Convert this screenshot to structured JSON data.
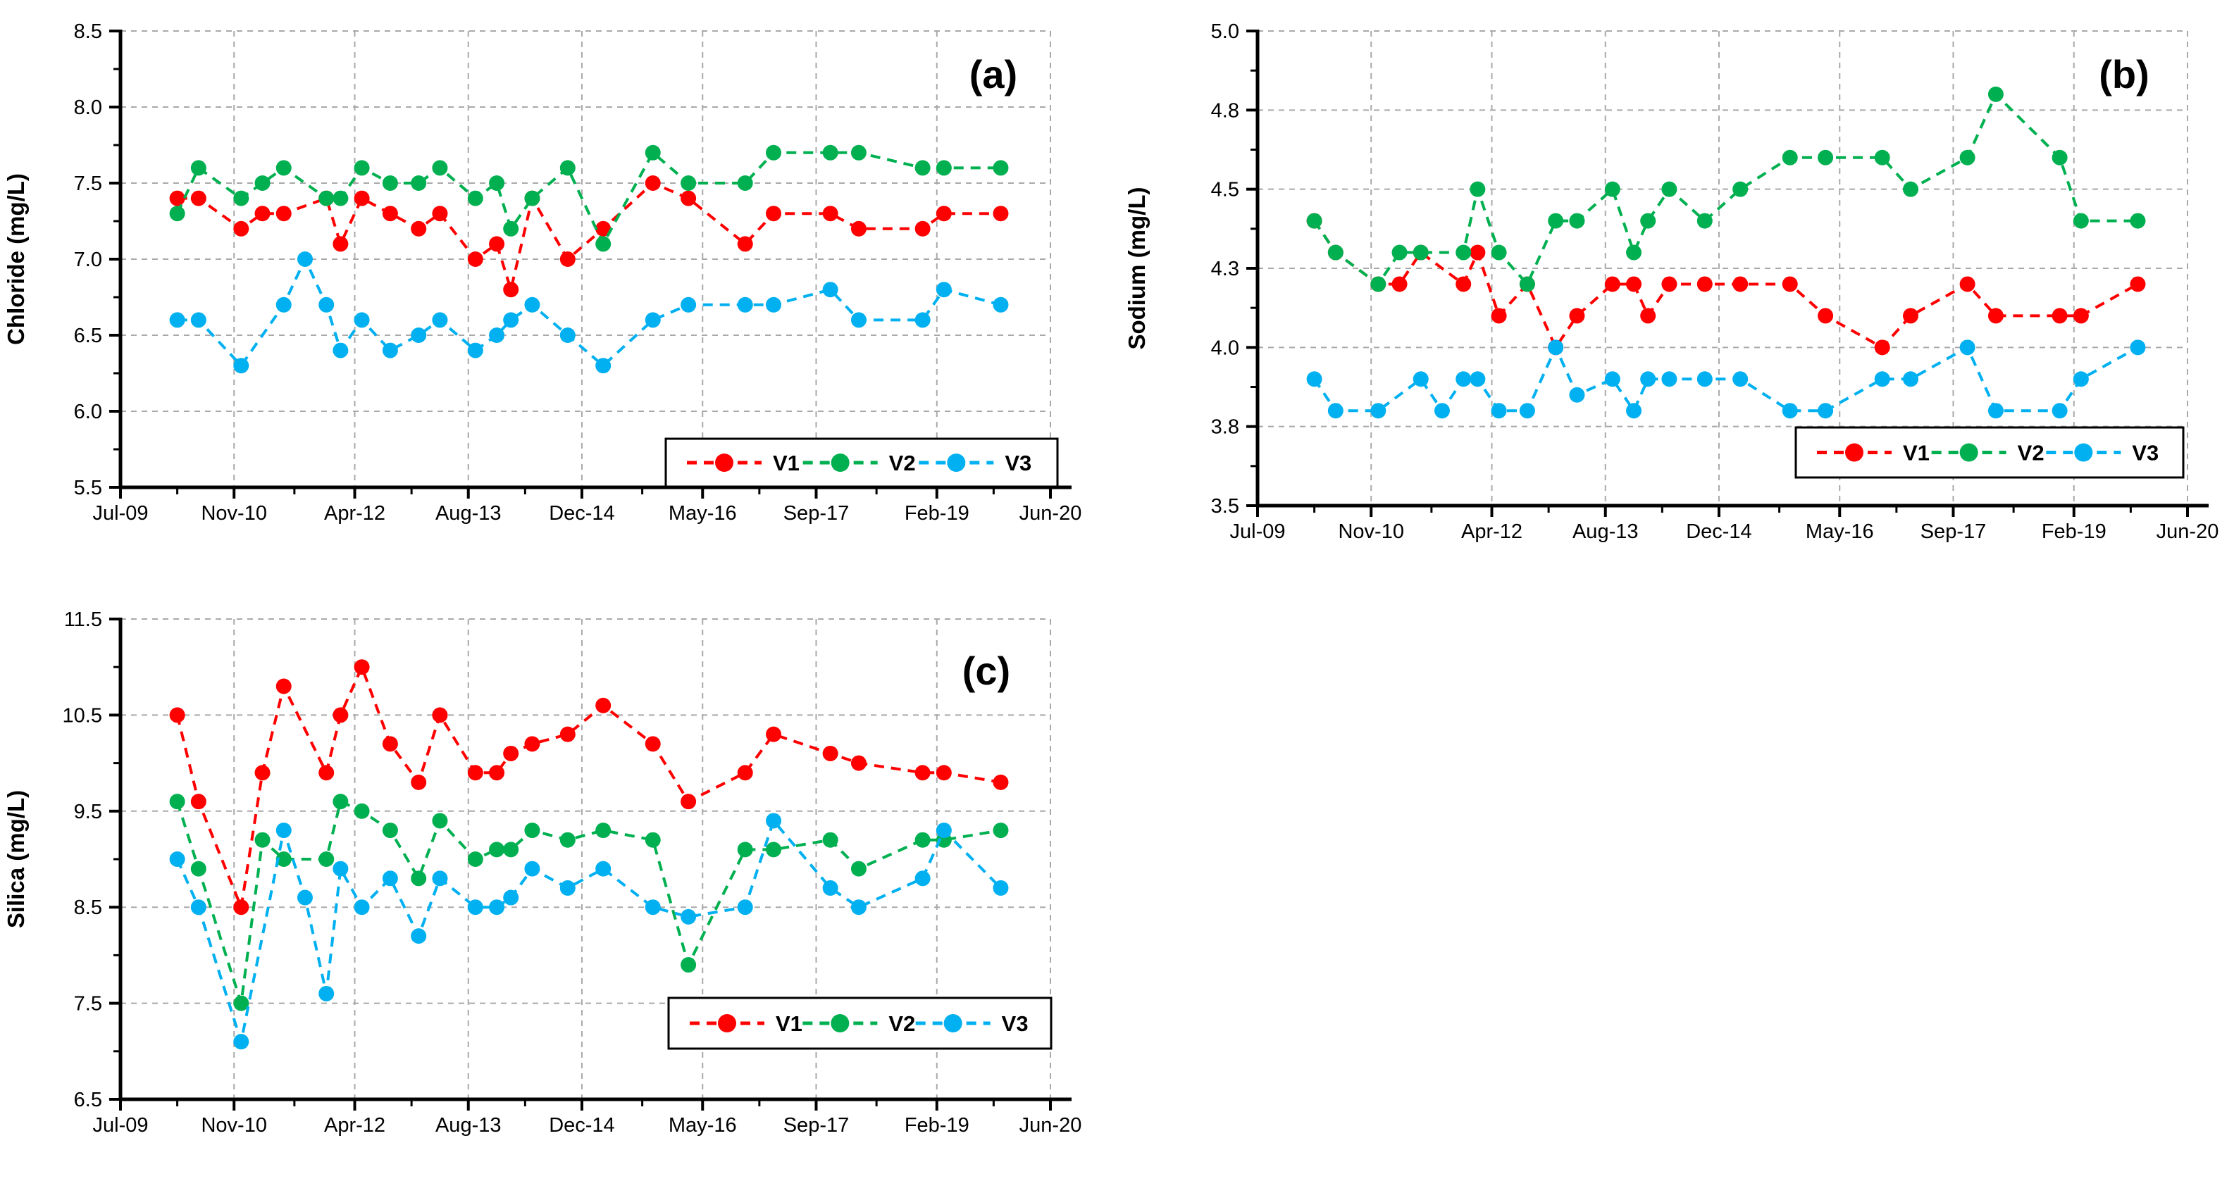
{
  "page": {
    "background": "#FFFFFF"
  },
  "colors": {
    "v1": "#FF0000",
    "v2": "#00B050",
    "v3": "#00B0F0",
    "gridline": "#A9A9A9",
    "axis": "#000000",
    "legend_border": "#000000",
    "legend_fill": "#FFFFFF",
    "text": "#000000"
  },
  "legend_labels": [
    "V1",
    "V2",
    "V3"
  ],
  "x_axis": {
    "tick_labels": [
      "Jul-09",
      "Nov-10",
      "Apr-12",
      "Aug-13",
      "Dec-14",
      "May-16",
      "Sep-17",
      "Feb-19",
      "Jun-20"
    ],
    "tick_months": [
      0,
      16,
      33,
      49,
      65,
      82,
      98,
      115,
      131
    ],
    "minor_tick_months": [
      8,
      24.5,
      41,
      57,
      73.5,
      90,
      106.5,
      123
    ],
    "range_months": [
      0,
      131
    ]
  },
  "chart_data": [
    {
      "id": "a",
      "type": "line",
      "panel_label": "(a)",
      "ylabel": "Chloride (mg/L)",
      "ylim": [
        5.5,
        8.5
      ],
      "ytick_values": [
        8.5,
        8.0,
        7.5,
        7.0,
        6.5,
        6.0,
        5.5
      ],
      "ytick_labels": [
        "8.5",
        "8.0",
        "7.5",
        "7.0",
        "6.5",
        "6.0",
        "5.5"
      ],
      "y_minor_step": 0.25,
      "xtick_labels": [
        "Jul-09",
        "Nov-10",
        "Apr-12",
        "Aug-13",
        "Dec-14",
        "May-16",
        "Sep-17",
        "Feb-19",
        "Jun-20"
      ],
      "xtick_months": [
        0,
        16,
        33,
        49,
        65,
        82,
        98,
        115,
        131
      ],
      "x_minor_months": [
        8,
        24.5,
        41,
        57,
        73.5,
        90,
        106.5,
        123
      ],
      "grid": true,
      "legend_position": "bottom-right",
      "series": [
        {
          "name": "V1",
          "color": "#FF0000",
          "x": [
            8,
            11,
            17,
            20,
            23,
            29,
            31,
            34,
            38,
            42,
            45,
            50,
            53,
            55,
            58,
            63,
            68,
            75,
            80,
            88,
            92,
            100,
            104,
            113,
            116,
            124
          ],
          "y": [
            7.4,
            7.4,
            7.2,
            7.3,
            7.3,
            7.4,
            7.1,
            7.4,
            7.3,
            7.2,
            7.3,
            7.0,
            7.1,
            6.8,
            7.4,
            7.0,
            7.2,
            7.5,
            7.4,
            7.1,
            7.3,
            7.3,
            7.2,
            7.2,
            7.3,
            7.3
          ]
        },
        {
          "name": "V2",
          "color": "#00B050",
          "x": [
            8,
            11,
            17,
            20,
            23,
            29,
            31,
            34,
            38,
            42,
            45,
            50,
            53,
            55,
            58,
            63,
            68,
            75,
            80,
            88,
            92,
            100,
            104,
            113,
            116,
            124
          ],
          "y": [
            7.3,
            7.6,
            7.4,
            7.5,
            7.6,
            7.4,
            7.4,
            7.6,
            7.5,
            7.5,
            7.6,
            7.4,
            7.5,
            7.2,
            7.4,
            7.6,
            7.1,
            7.7,
            7.5,
            7.5,
            7.7,
            7.7,
            7.7,
            7.6,
            7.6,
            7.6
          ]
        },
        {
          "name": "V3",
          "color": "#00B0F0",
          "x": [
            8,
            11,
            17,
            23,
            26,
            29,
            31,
            34,
            38,
            42,
            45,
            50,
            53,
            55,
            58,
            63,
            68,
            75,
            80,
            88,
            92,
            100,
            104,
            113,
            116,
            124
          ],
          "y": [
            6.6,
            6.6,
            6.3,
            6.7,
            7.0,
            6.7,
            6.4,
            6.6,
            6.4,
            6.5,
            6.6,
            6.4,
            6.5,
            6.6,
            6.7,
            6.5,
            6.3,
            6.6,
            6.7,
            6.7,
            6.7,
            6.8,
            6.6,
            6.6,
            6.8,
            6.7
          ]
        }
      ]
    },
    {
      "id": "b",
      "type": "line",
      "panel_label": "(b)",
      "ylabel": "Sodium (mg/L)",
      "ylim": [
        3.5,
        5.0
      ],
      "ytick_values": [
        5.0,
        4.75,
        4.5,
        4.25,
        4.0,
        3.75,
        3.5
      ],
      "ytick_labels": [
        "5.0",
        "4.8",
        "4.5",
        "4.3",
        "4.0",
        "3.8",
        "3.5"
      ],
      "y_minor_step": 0.125,
      "xtick_labels": [
        "Jul-09",
        "Nov-10",
        "Apr-12",
        "Aug-13",
        "Dec-14",
        "May-16",
        "Sep-17",
        "Feb-19",
        "Jun-20"
      ],
      "xtick_months": [
        0,
        16,
        33,
        49,
        65,
        82,
        98,
        115,
        131
      ],
      "x_minor_months": [
        8,
        24.5,
        41,
        57,
        73.5,
        90,
        106.5,
        123
      ],
      "grid": true,
      "legend_position": "bottom-right",
      "series": [
        {
          "name": "V1",
          "color": "#FF0000",
          "x": [
            8,
            11,
            17,
            20,
            23,
            29,
            31,
            34,
            38,
            42,
            45,
            50,
            53,
            55,
            58,
            63,
            68,
            75,
            80,
            88,
            92,
            100,
            104,
            113,
            116,
            124
          ],
          "y": [
            4.4,
            4.3,
            4.2,
            4.2,
            4.3,
            4.2,
            4.3,
            4.1,
            4.2,
            4.0,
            4.1,
            4.2,
            4.2,
            4.1,
            4.2,
            4.2,
            4.2,
            4.2,
            4.1,
            4.0,
            4.1,
            4.2,
            4.1,
            4.1,
            4.1,
            4.2
          ]
        },
        {
          "name": "V2",
          "color": "#00B050",
          "x": [
            8,
            11,
            17,
            20,
            23,
            29,
            31,
            34,
            38,
            42,
            45,
            50,
            53,
            55,
            58,
            63,
            68,
            75,
            80,
            88,
            92,
            100,
            104,
            113,
            116,
            124
          ],
          "y": [
            4.4,
            4.3,
            4.2,
            4.3,
            4.3,
            4.3,
            4.5,
            4.3,
            4.2,
            4.4,
            4.4,
            4.5,
            4.3,
            4.4,
            4.5,
            4.4,
            4.5,
            4.6,
            4.6,
            4.6,
            4.5,
            4.6,
            4.8,
            4.6,
            4.4,
            4.4
          ]
        },
        {
          "name": "V3",
          "color": "#00B0F0",
          "x": [
            8,
            11,
            17,
            23,
            26,
            29,
            31,
            34,
            38,
            42,
            45,
            50,
            53,
            55,
            58,
            63,
            68,
            75,
            80,
            88,
            92,
            100,
            104,
            113,
            116,
            124
          ],
          "y": [
            3.9,
            3.8,
            3.8,
            3.9,
            3.8,
            3.9,
            3.9,
            3.8,
            3.8,
            4.0,
            3.85,
            3.9,
            3.8,
            3.9,
            3.9,
            3.9,
            3.9,
            3.8,
            3.8,
            3.9,
            3.9,
            4.0,
            3.8,
            3.8,
            3.9,
            4.0
          ]
        }
      ]
    },
    {
      "id": "c",
      "type": "line",
      "panel_label": "(c)",
      "ylabel": "Silica (mg/L)",
      "ylim": [
        6.5,
        11.5
      ],
      "ytick_values": [
        11.5,
        10.5,
        9.5,
        8.5,
        7.5,
        6.5
      ],
      "ytick_labels": [
        "11.5",
        "10.5",
        "9.5",
        "8.5",
        "7.5",
        "6.5"
      ],
      "y_minor_step": 0.5,
      "xtick_labels": [
        "Jul-09",
        "Nov-10",
        "Apr-12",
        "Aug-13",
        "Dec-14",
        "May-16",
        "Sep-17",
        "Feb-19",
        "Jun-20"
      ],
      "xtick_months": [
        0,
        16,
        33,
        49,
        65,
        82,
        98,
        115,
        131
      ],
      "x_minor_months": [
        8,
        24.5,
        41,
        57,
        73.5,
        90,
        106.5,
        123
      ],
      "grid": true,
      "legend_position": "bottom-right",
      "series": [
        {
          "name": "V1",
          "color": "#FF0000",
          "x": [
            8,
            11,
            17,
            20,
            23,
            29,
            31,
            34,
            38,
            42,
            45,
            50,
            53,
            55,
            58,
            63,
            68,
            75,
            80,
            88,
            92,
            100,
            104,
            113,
            116,
            124
          ],
          "y": [
            10.5,
            9.6,
            8.5,
            9.9,
            10.8,
            9.9,
            10.5,
            11.0,
            10.2,
            9.8,
            10.5,
            9.9,
            9.9,
            10.1,
            10.2,
            10.3,
            10.6,
            10.2,
            9.6,
            9.9,
            10.3,
            10.1,
            10.0,
            9.9,
            9.9,
            9.8
          ]
        },
        {
          "name": "V2",
          "color": "#00B050",
          "x": [
            8,
            11,
            17,
            20,
            23,
            29,
            31,
            34,
            38,
            42,
            45,
            50,
            53,
            55,
            58,
            63,
            68,
            75,
            80,
            88,
            92,
            100,
            104,
            113,
            116,
            124
          ],
          "y": [
            9.6,
            8.9,
            7.5,
            9.2,
            9.0,
            9.0,
            9.6,
            9.5,
            9.3,
            8.8,
            9.4,
            9.0,
            9.1,
            9.1,
            9.3,
            9.2,
            9.3,
            9.2,
            7.9,
            9.1,
            9.1,
            9.2,
            8.9,
            9.2,
            9.2,
            9.3
          ]
        },
        {
          "name": "V3",
          "color": "#00B0F0",
          "x": [
            8,
            11,
            17,
            23,
            26,
            29,
            31,
            34,
            38,
            42,
            45,
            50,
            53,
            55,
            58,
            63,
            68,
            75,
            80,
            88,
            92,
            100,
            104,
            113,
            116,
            124
          ],
          "y": [
            9.0,
            8.5,
            7.1,
            9.3,
            8.6,
            7.6,
            8.9,
            8.5,
            8.8,
            8.2,
            8.8,
            8.5,
            8.5,
            8.6,
            8.9,
            8.7,
            8.9,
            8.5,
            8.4,
            8.5,
            9.4,
            8.7,
            8.5,
            8.8,
            9.3,
            8.7
          ]
        }
      ]
    }
  ]
}
